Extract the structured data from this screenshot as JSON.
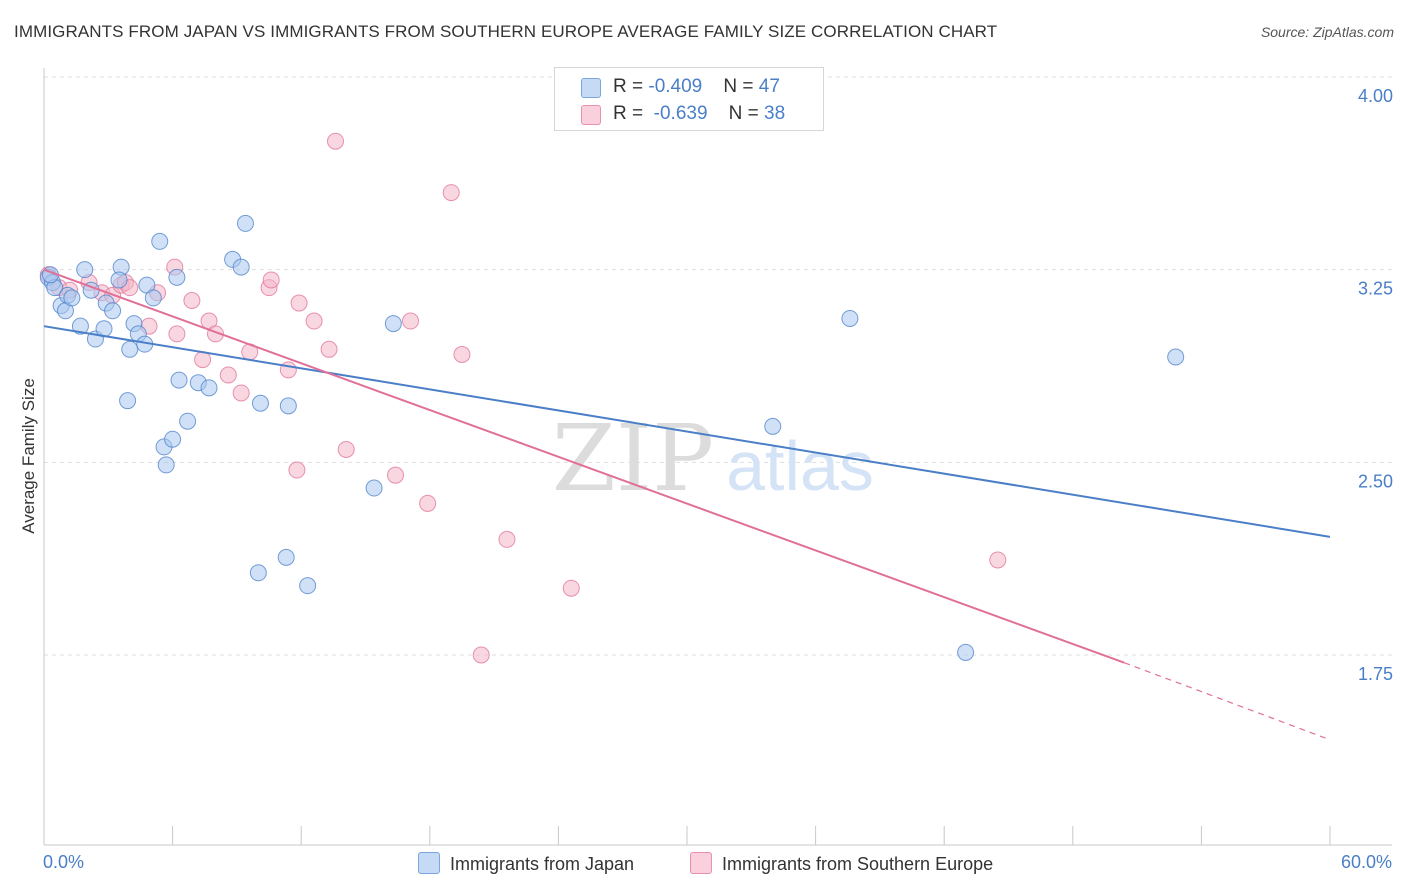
{
  "title": "IMMIGRANTS FROM JAPAN VS IMMIGRANTS FROM SOUTHERN EUROPE AVERAGE FAMILY SIZE CORRELATION CHART",
  "source": "Source: ZipAtlas.com",
  "watermark": {
    "zip": "ZIP",
    "atlas": "atlas"
  },
  "stats": [
    {
      "r_label": "R = ",
      "r_value": "-0.409",
      "n_label": "N = ",
      "n_value": "47",
      "color": "#a9c8f0"
    },
    {
      "r_label": "R = ",
      "r_value": "-0.639",
      "n_label": "N = ",
      "n_value": "38",
      "color": "#f4b6c8"
    }
  ],
  "chart_data": {
    "type": "scatter",
    "title": "IMMIGRANTS FROM JAPAN VS IMMIGRANTS FROM SOUTHERN EUROPE AVERAGE FAMILY SIZE CORRELATION CHART",
    "xlabel": "",
    "ylabel": "Average Family Size",
    "xlim": [
      0,
      60
    ],
    "ylim": [
      1.2,
      4.2
    ],
    "x_tick_labels": [
      "0.0%",
      "60.0%"
    ],
    "y_ticks": [
      1.75,
      2.5,
      3.25,
      4.0
    ],
    "y_tick_labels": [
      "1.75",
      "2.50",
      "3.25",
      "4.00"
    ],
    "grid": "horizontal dashed",
    "legend_position": "bottom",
    "series": [
      {
        "name": "Immigrants from Japan",
        "color": "#4a7fc8",
        "fill": "#a9c8f0",
        "trend": {
          "x": [
            0,
            60
          ],
          "y": [
            3.03,
            2.21
          ]
        },
        "points": [
          [
            0.2,
            3.22
          ],
          [
            0.4,
            3.2
          ],
          [
            0.5,
            3.18
          ],
          [
            0.8,
            3.11
          ],
          [
            1.0,
            3.09
          ],
          [
            1.1,
            3.15
          ],
          [
            1.3,
            3.14
          ],
          [
            1.7,
            3.03
          ],
          [
            1.9,
            3.25
          ],
          [
            2.2,
            3.17
          ],
          [
            2.4,
            2.98
          ],
          [
            2.8,
            3.02
          ],
          [
            2.9,
            3.12
          ],
          [
            3.2,
            3.09
          ],
          [
            3.6,
            3.26
          ],
          [
            3.5,
            3.21
          ],
          [
            3.9,
            2.74
          ],
          [
            4.0,
            2.94
          ],
          [
            4.2,
            3.04
          ],
          [
            4.4,
            3.0
          ],
          [
            4.7,
            2.96
          ],
          [
            4.8,
            3.19
          ],
          [
            5.1,
            3.14
          ],
          [
            5.4,
            3.36
          ],
          [
            5.6,
            2.56
          ],
          [
            5.7,
            2.49
          ],
          [
            6.0,
            2.59
          ],
          [
            6.2,
            3.22
          ],
          [
            6.3,
            2.82
          ],
          [
            6.7,
            2.66
          ],
          [
            7.2,
            2.81
          ],
          [
            7.7,
            2.79
          ],
          [
            8.8,
            3.29
          ],
          [
            9.2,
            3.26
          ],
          [
            9.4,
            3.43
          ],
          [
            10.0,
            2.07
          ],
          [
            10.1,
            2.73
          ],
          [
            11.3,
            2.13
          ],
          [
            11.4,
            2.72
          ],
          [
            12.3,
            2.02
          ],
          [
            15.4,
            2.4
          ],
          [
            16.3,
            3.04
          ],
          [
            34.0,
            2.64
          ],
          [
            37.6,
            3.06
          ],
          [
            43.0,
            1.76
          ],
          [
            52.8,
            2.91
          ],
          [
            0.3,
            3.23
          ]
        ]
      },
      {
        "name": "Immigrants from Southern Europe",
        "color": "#e07098",
        "fill": "#f4b6c8",
        "trend": {
          "x": [
            0,
            50.4
          ],
          "y": [
            3.25,
            1.72
          ]
        },
        "trend_dashed": {
          "x": [
            50.4,
            60
          ],
          "y": [
            1.72,
            1.42
          ]
        },
        "points": [
          [
            0.2,
            3.23
          ],
          [
            0.7,
            3.18
          ],
          [
            1.2,
            3.17
          ],
          [
            2.1,
            3.2
          ],
          [
            2.7,
            3.16
          ],
          [
            3.2,
            3.15
          ],
          [
            3.6,
            3.19
          ],
          [
            3.8,
            3.2
          ],
          [
            4.0,
            3.18
          ],
          [
            4.9,
            3.03
          ],
          [
            5.3,
            3.16
          ],
          [
            6.1,
            3.26
          ],
          [
            6.2,
            3.0
          ],
          [
            6.9,
            3.13
          ],
          [
            7.4,
            2.9
          ],
          [
            7.7,
            3.05
          ],
          [
            8.0,
            3.0
          ],
          [
            8.6,
            2.84
          ],
          [
            9.2,
            2.77
          ],
          [
            9.6,
            2.93
          ],
          [
            10.5,
            3.18
          ],
          [
            10.6,
            3.21
          ],
          [
            11.4,
            2.86
          ],
          [
            11.8,
            2.47
          ],
          [
            11.9,
            3.12
          ],
          [
            12.6,
            3.05
          ],
          [
            13.3,
            2.94
          ],
          [
            13.6,
            3.75
          ],
          [
            14.1,
            2.55
          ],
          [
            16.4,
            2.45
          ],
          [
            17.1,
            3.05
          ],
          [
            17.9,
            2.34
          ],
          [
            19.0,
            3.55
          ],
          [
            19.5,
            2.92
          ],
          [
            20.4,
            1.75
          ],
          [
            21.6,
            2.2
          ],
          [
            24.6,
            2.01
          ],
          [
            44.5,
            2.12
          ]
        ]
      }
    ]
  }
}
